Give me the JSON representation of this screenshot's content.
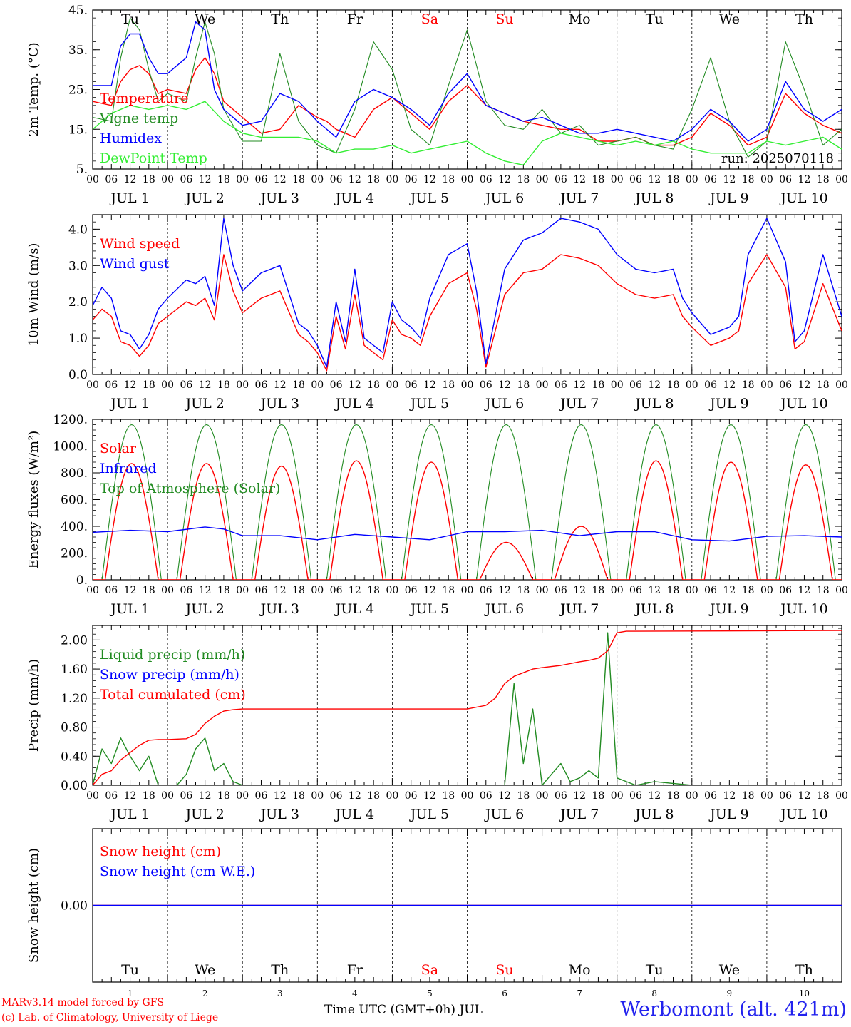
{
  "station": "Werbomont (alt. 421m)",
  "credits": [
    "MARv3.14 model forced by GFS",
    "(c) Lab. of Climatology, University of Liege"
  ],
  "x_axis_title": "Time UTC (GMT+0h) JUL",
  "run_label": "run: 2025070118",
  "hour_ticks": [
    "00",
    "06",
    "12",
    "18"
  ],
  "date_labels": [
    "JUL  1",
    "JUL  2",
    "JUL  3",
    "JUL  4",
    "JUL  5",
    "JUL  6",
    "JUL  7",
    "JUL  8",
    "JUL  9",
    "JUL 10"
  ],
  "day_names": [
    "Tu",
    "We",
    "Th",
    "Fr",
    "Sa",
    "Su",
    "Mo",
    "Tu",
    "We",
    "Th"
  ],
  "weekend_days": [
    4,
    5
  ],
  "day_numbers": [
    "1",
    "2",
    "3",
    "4",
    "5",
    "6",
    "7",
    "8",
    "9",
    "10"
  ],
  "colors": {
    "red": "#ff0000",
    "green": "#228b22",
    "blue": "#0000ff",
    "lightgreen": "#33ee33",
    "station": "#2222ee"
  },
  "chart_data": [
    {
      "type": "line",
      "ylabel": "2m Temp. (°C)",
      "ylim": [
        5,
        45
      ],
      "yticks": [
        5,
        15,
        25,
        35,
        45
      ],
      "yticklabels": [
        "5.",
        "15.",
        "25.",
        "35.",
        "45."
      ],
      "x_unit": "hours since JUL 1 00 UTC",
      "series": [
        {
          "name": "Temperature",
          "color": "red",
          "x": [
            0,
            6,
            9,
            12,
            15,
            18,
            21,
            24,
            30,
            33,
            36,
            39,
            42,
            48,
            54,
            60,
            66,
            72,
            75,
            78,
            84,
            90,
            96,
            99,
            102,
            108,
            114,
            120,
            126,
            132,
            138,
            144,
            150,
            156,
            162,
            168,
            174,
            180,
            186,
            192,
            198,
            204,
            210,
            216,
            222,
            228,
            234,
            240
          ],
          "y": [
            22,
            21,
            27,
            30,
            31,
            29,
            24,
            25,
            24,
            30,
            33,
            29,
            22,
            18,
            14,
            15,
            21,
            18,
            17,
            15,
            13,
            20,
            23,
            21,
            19,
            15,
            22,
            26,
            21,
            19,
            17,
            16,
            15,
            15,
            12,
            12,
            13,
            11,
            11,
            13,
            19,
            16,
            11,
            13,
            24,
            19,
            16,
            14
          ]
        },
        {
          "name": "Vigne temp",
          "color": "green",
          "x": [
            0,
            6,
            9,
            12,
            15,
            18,
            21,
            24,
            30,
            33,
            36,
            39,
            42,
            48,
            54,
            60,
            66,
            72,
            78,
            84,
            90,
            96,
            102,
            108,
            114,
            120,
            126,
            132,
            138,
            144,
            150,
            156,
            162,
            168,
            174,
            180,
            186,
            192,
            198,
            204,
            210,
            216,
            222,
            228,
            234,
            240
          ],
          "y": [
            18,
            17,
            33,
            43,
            40,
            30,
            22,
            24,
            22,
            33,
            42,
            34,
            20,
            12,
            12,
            34,
            17,
            11,
            9,
            20,
            37,
            30,
            15,
            11,
            26,
            40,
            22,
            16,
            15,
            20,
            14,
            16,
            11,
            12,
            13,
            11,
            10,
            20,
            33,
            17,
            8,
            12,
            37,
            25,
            11,
            15
          ]
        },
        {
          "name": "Humidex",
          "color": "blue",
          "x": [
            0,
            6,
            9,
            12,
            15,
            18,
            21,
            24,
            30,
            33,
            36,
            39,
            42,
            48,
            54,
            60,
            66,
            72,
            78,
            84,
            90,
            96,
            102,
            108,
            114,
            120,
            126,
            132,
            138,
            144,
            150,
            156,
            162,
            168,
            174,
            180,
            186,
            192,
            198,
            204,
            210,
            216,
            222,
            228,
            234,
            240
          ],
          "y": [
            26,
            26,
            36,
            39,
            39,
            33,
            29,
            29,
            33,
            42,
            40,
            25,
            20,
            16,
            17,
            24,
            22,
            17,
            13,
            22,
            25,
            23,
            20,
            16,
            24,
            29,
            21,
            19,
            17,
            18,
            16,
            14,
            14,
            15,
            14,
            13,
            12,
            15,
            20,
            17,
            12,
            15,
            27,
            20,
            17,
            20
          ]
        },
        {
          "name": "DewPoint Temp",
          "color": "lightgreen",
          "x": [
            0,
            6,
            12,
            18,
            24,
            30,
            36,
            42,
            48,
            54,
            60,
            66,
            72,
            78,
            84,
            90,
            96,
            102,
            108,
            114,
            120,
            126,
            132,
            138,
            144,
            150,
            156,
            162,
            168,
            174,
            180,
            186,
            192,
            198,
            204,
            210,
            216,
            222,
            228,
            234,
            240
          ],
          "y": [
            15,
            19,
            21,
            20,
            21,
            20,
            22,
            17,
            14,
            13,
            13,
            13,
            12,
            9,
            10,
            10,
            11,
            9,
            10,
            11,
            12,
            9,
            7,
            6,
            12,
            14,
            13,
            12,
            11,
            12,
            11,
            12,
            10,
            9,
            9,
            9,
            12,
            11,
            12,
            13,
            10
          ]
        }
      ]
    },
    {
      "type": "line",
      "ylabel": "10m Wind (m/s)",
      "ylim": [
        0,
        4.4
      ],
      "yticks": [
        0,
        1,
        2,
        3,
        4
      ],
      "yticklabels": [
        "0.0",
        "1.0",
        "2.0",
        "3.0",
        "4.0"
      ],
      "x_unit": "hours since JUL 1 00 UTC",
      "series": [
        {
          "name": "Wind speed",
          "color": "red",
          "x": [
            0,
            3,
            6,
            9,
            12,
            15,
            18,
            21,
            24,
            30,
            33,
            36,
            39,
            42,
            45,
            48,
            54,
            60,
            66,
            69,
            72,
            75,
            78,
            81,
            84,
            87,
            90,
            93,
            96,
            99,
            102,
            105,
            108,
            114,
            120,
            123,
            126,
            129,
            132,
            138,
            144,
            150,
            156,
            162,
            168,
            174,
            180,
            186,
            189,
            192,
            198,
            204,
            207,
            210,
            216,
            222,
            225,
            228,
            234,
            240
          ],
          "y": [
            1.5,
            1.8,
            1.6,
            0.9,
            0.8,
            0.5,
            0.8,
            1.4,
            1.6,
            2.0,
            1.9,
            2.1,
            1.5,
            3.3,
            2.3,
            1.7,
            2.1,
            2.3,
            1.1,
            0.9,
            0.6,
            0.1,
            1.6,
            0.7,
            2.2,
            0.8,
            0.6,
            0.4,
            1.5,
            1.1,
            1.0,
            0.8,
            1.6,
            2.5,
            2.8,
            1.8,
            0.2,
            1.2,
            2.2,
            2.8,
            2.9,
            3.3,
            3.2,
            3.0,
            2.5,
            2.2,
            2.1,
            2.2,
            1.6,
            1.3,
            0.8,
            1.0,
            1.2,
            2.5,
            3.3,
            2.4,
            0.7,
            0.9,
            2.5,
            1.2
          ]
        },
        {
          "name": "Wind gust",
          "color": "blue",
          "x": [
            0,
            3,
            6,
            9,
            12,
            15,
            18,
            21,
            24,
            30,
            33,
            36,
            39,
            42,
            45,
            48,
            54,
            60,
            66,
            69,
            72,
            75,
            78,
            81,
            84,
            87,
            90,
            93,
            96,
            99,
            102,
            105,
            108,
            114,
            120,
            123,
            126,
            129,
            132,
            138,
            144,
            150,
            156,
            162,
            168,
            174,
            180,
            186,
            189,
            192,
            198,
            204,
            207,
            210,
            216,
            222,
            225,
            228,
            234,
            240
          ],
          "y": [
            1.9,
            2.4,
            2.1,
            1.2,
            1.1,
            0.7,
            1.1,
            1.8,
            2.1,
            2.6,
            2.5,
            2.7,
            1.9,
            4.3,
            3.0,
            2.3,
            2.8,
            3.0,
            1.4,
            1.2,
            0.8,
            0.2,
            2.0,
            0.9,
            2.9,
            1.0,
            0.8,
            0.6,
            2.0,
            1.5,
            1.3,
            1.0,
            2.1,
            3.3,
            3.6,
            2.3,
            0.3,
            1.6,
            2.9,
            3.7,
            3.9,
            4.3,
            4.2,
            4.0,
            3.3,
            2.9,
            2.8,
            2.9,
            2.1,
            1.7,
            1.1,
            1.3,
            1.6,
            3.3,
            4.3,
            3.1,
            0.9,
            1.2,
            3.3,
            1.6
          ]
        }
      ]
    },
    {
      "type": "line",
      "ylabel": "Energy fluxes (W/m²)",
      "ylim": [
        0,
        1200
      ],
      "yticks": [
        0,
        200,
        400,
        600,
        800,
        1000,
        1200
      ],
      "yticklabels": [
        "0.",
        "200.",
        "400.",
        "600.",
        "800.",
        "1000.",
        "1200."
      ],
      "x_unit": "hours since JUL 1 00 UTC",
      "diurnal_solar": {
        "name": "Solar",
        "color": "red",
        "sunrise_h": 4,
        "sunset_h": 21,
        "daily_peak": [
          870,
          870,
          850,
          890,
          880,
          280,
          400,
          890,
          880,
          860
        ]
      },
      "diurnal_toa": {
        "name": "Top of Atmosphere (Solar)",
        "color": "green",
        "sunrise_h": 3,
        "sunset_h": 22,
        "daily_peak": [
          1160,
          1160,
          1160,
          1160,
          1160,
          1160,
          1160,
          1160,
          1160,
          1160
        ]
      },
      "series": [
        {
          "name": "Infrared",
          "color": "blue",
          "x": [
            0,
            12,
            24,
            36,
            42,
            48,
            60,
            72,
            84,
            96,
            108,
            120,
            132,
            144,
            156,
            168,
            180,
            192,
            204,
            216,
            228,
            240
          ],
          "y": [
            355,
            370,
            360,
            395,
            380,
            330,
            330,
            300,
            340,
            320,
            300,
            360,
            360,
            370,
            330,
            360,
            360,
            300,
            290,
            325,
            330,
            320
          ]
        }
      ]
    },
    {
      "type": "line",
      "ylabel": "Precip (mm/h)",
      "ylim": [
        0,
        2.2
      ],
      "yticks": [
        0,
        0.4,
        0.8,
        1.2,
        1.6,
        2.0
      ],
      "yticklabels": [
        "0.00",
        "0.40",
        "0.80",
        "1.20",
        "1.60",
        "2.00"
      ],
      "x_unit": "hours since JUL 1 00 UTC",
      "series": [
        {
          "name": "Liquid precip (mm/h)",
          "color": "green",
          "x": [
            0,
            3,
            6,
            9,
            12,
            15,
            18,
            21,
            24,
            27,
            30,
            33,
            36,
            39,
            42,
            45,
            48,
            120,
            132,
            135,
            138,
            141,
            144,
            147,
            150,
            153,
            156,
            159,
            162,
            165,
            168,
            171,
            174,
            180,
            192,
            216,
            240
          ],
          "y": [
            0.0,
            0.5,
            0.3,
            0.65,
            0.4,
            0.2,
            0.4,
            0.0,
            0.0,
            0.0,
            0.15,
            0.5,
            0.65,
            0.2,
            0.3,
            0.05,
            0.0,
            0.0,
            0.0,
            1.4,
            0.3,
            1.05,
            0.0,
            0.15,
            0.3,
            0.05,
            0.1,
            0.2,
            0.1,
            2.1,
            0.1,
            0.05,
            0.0,
            0.05,
            0.0,
            0.0,
            0.0
          ]
        },
        {
          "name": "Snow precip (mm/h)",
          "color": "blue",
          "x": [
            0,
            240
          ],
          "y": [
            0,
            0
          ]
        },
        {
          "name": "Total cumulated (cm)",
          "color": "red",
          "x": [
            0,
            3,
            6,
            9,
            12,
            15,
            18,
            21,
            24,
            30,
            33,
            36,
            39,
            42,
            45,
            48,
            120,
            126,
            129,
            132,
            135,
            138,
            141,
            144,
            150,
            156,
            159,
            162,
            165,
            168,
            171,
            240
          ],
          "y": [
            0.0,
            0.15,
            0.2,
            0.35,
            0.45,
            0.55,
            0.62,
            0.63,
            0.63,
            0.64,
            0.7,
            0.85,
            0.95,
            1.02,
            1.04,
            1.05,
            1.05,
            1.1,
            1.2,
            1.4,
            1.5,
            1.55,
            1.6,
            1.62,
            1.65,
            1.7,
            1.72,
            1.75,
            1.85,
            2.1,
            2.12,
            2.13
          ]
        }
      ]
    },
    {
      "type": "line",
      "ylabel": "Snow height (cm)",
      "ylim": [
        -1,
        1
      ],
      "yticks": [
        0
      ],
      "yticklabels": [
        "0.00"
      ],
      "x_unit": "hours since JUL 1 00 UTC",
      "series": [
        {
          "name": "Snow height (cm)",
          "color": "red",
          "x": [
            0,
            240
          ],
          "y": [
            0,
            0
          ]
        },
        {
          "name": "Snow height (cm W.E.)",
          "color": "blue",
          "x": [
            0,
            240
          ],
          "y": [
            0,
            0
          ]
        }
      ]
    }
  ]
}
